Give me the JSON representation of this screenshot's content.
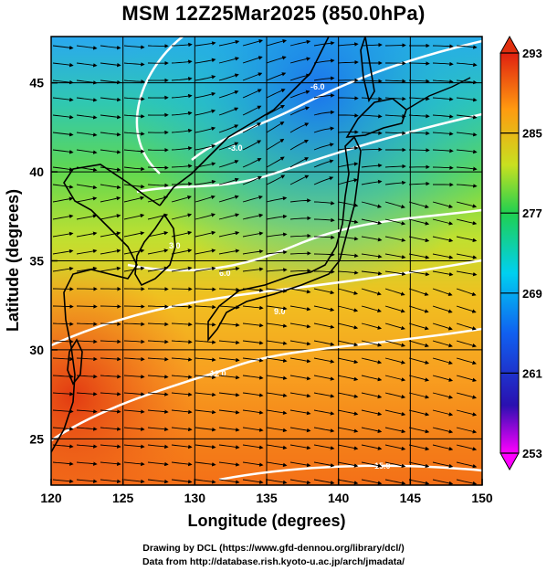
{
  "title": "MSM 12Z25Mar2025 (850.0hPa)",
  "map": {
    "xlabel": "Longitude (degrees)",
    "ylabel": "Latitude  (degrees)",
    "lon_range": [
      120,
      150
    ],
    "lat_range": [
      22.4,
      47.6
    ],
    "lon_ticks": [
      "120",
      "125",
      "130",
      "135",
      "140",
      "145",
      "150"
    ],
    "lat_ticks": [
      "25",
      "30",
      "35",
      "40",
      "45"
    ],
    "fields": [
      "temperature (shaded)",
      "wind streamlines",
      "isotherms",
      "coastlines",
      "lat/lon grid"
    ]
  },
  "colorbar": {
    "min": 253,
    "max": 293,
    "tick_labels": [
      "293",
      "285",
      "277",
      "269",
      "261",
      "253"
    ],
    "colors": [
      "#ff00ff",
      "#1030c0",
      "#00c8ff",
      "#20d060",
      "#c8e020",
      "#ff9a10",
      "#e02010"
    ]
  },
  "isotherm_labels": [
    "-6.0",
    "-3.0",
    "3.0",
    "6.0",
    "9.0",
    "12.0",
    "15.0"
  ],
  "credits": {
    "line1": "Drawing by DCL (https://www.gfd-dennou.org/library/dcl/)",
    "line2": "Data from http://database.rish.kyoto-u.ac.jp/arch/jmadata/"
  }
}
